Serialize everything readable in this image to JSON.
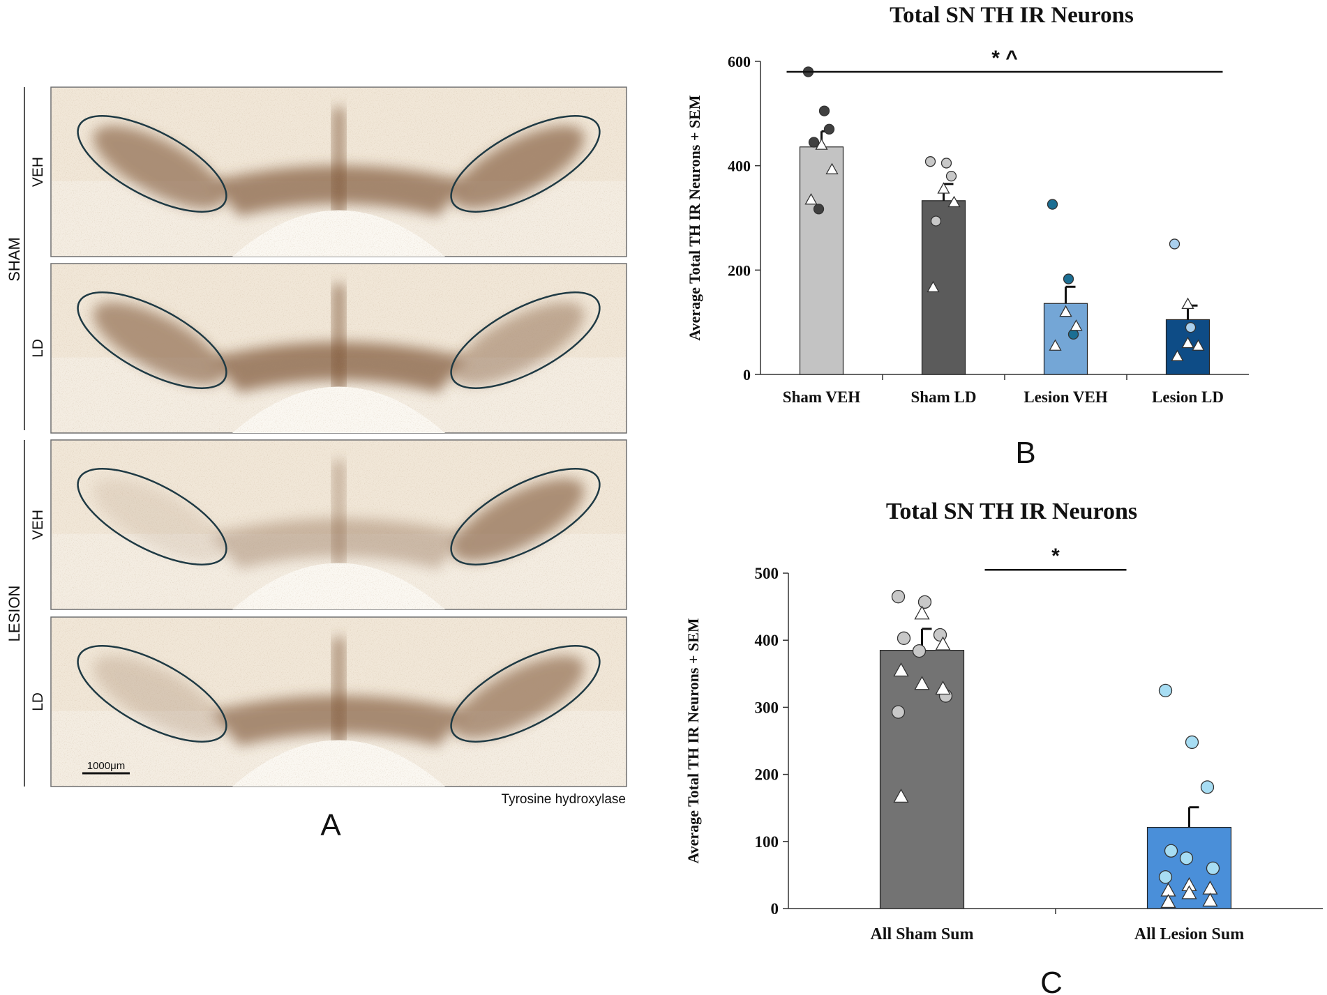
{
  "panel_a": {
    "panel_letter": "A",
    "group_labels": [
      "SHAM",
      "LESION"
    ],
    "row_labels": [
      "VEH",
      "LD",
      "VEH",
      "LD"
    ],
    "scale_bar_label": "1000μm",
    "stain_label": "Tyrosine hydroxylase",
    "rows": [
      {
        "group": "SHAM",
        "treatment": "VEH",
        "left_stain": 0.85,
        "right_stain": 0.9,
        "mid_stain": 0.9
      },
      {
        "group": "SHAM",
        "treatment": "LD",
        "left_stain": 0.8,
        "right_stain": 0.55,
        "mid_stain": 0.95
      },
      {
        "group": "LESION",
        "treatment": "VEH",
        "left_stain": 0.05,
        "right_stain": 0.85,
        "mid_stain": 0.35
      },
      {
        "group": "LESION",
        "treatment": "LD",
        "left_stain": 0.2,
        "right_stain": 0.8,
        "mid_stain": 0.85
      }
    ],
    "colors": {
      "tissue": "#f4ede2",
      "stain": "#7a5130",
      "outline": "#1f3a44"
    }
  },
  "chart_data": [
    {
      "type": "bar",
      "panel_letter": "B",
      "title": "Total SN TH IR Neurons",
      "xlabel": "",
      "ylabel": "Average Total TH IR Neurons + SEM",
      "ylim": [
        0,
        600
      ],
      "yticks": [
        0,
        200,
        400,
        600
      ],
      "categories": [
        "Sham VEH",
        "Sham LD",
        "Lesion VEH",
        "Lesion LD"
      ],
      "values": [
        436,
        333,
        136,
        105
      ],
      "errors": [
        30,
        32,
        32,
        27
      ],
      "colors": [
        "#c3c3c3",
        "#5b5b5b",
        "#74a6d6",
        "#0e4c86"
      ],
      "point_colors": [
        "#404040",
        "#c8c8c8",
        "#1b6e93",
        "#aad0ee"
      ],
      "circles": [
        [
          580,
          505,
          470,
          445,
          317
        ],
        [
          408,
          405,
          380,
          294
        ],
        [
          326,
          183,
          77
        ],
        [
          250,
          90
        ]
      ],
      "triangles": [
        [
          440,
          393,
          335
        ],
        [
          356,
          330,
          167
        ],
        [
          120,
          93,
          55,
          120
        ],
        [
          135,
          55,
          35,
          60
        ]
      ],
      "significance": {
        "label": "* ^",
        "from_category": 0,
        "to_category": 3,
        "y_value": 580
      }
    },
    {
      "type": "bar",
      "panel_letter": "C",
      "title": "Total SN TH IR Neurons",
      "xlabel": "",
      "ylabel": "Average Total TH IR Neurons + SEM",
      "ylim": [
        0,
        500
      ],
      "yticks": [
        0,
        100,
        200,
        300,
        400,
        500
      ],
      "categories": [
        "All Sham Sum",
        "All Lesion Sum"
      ],
      "values": [
        385,
        121
      ],
      "errors": [
        32,
        30
      ],
      "colors": [
        "#737373",
        "#4a8fd9"
      ],
      "point_colors": [
        "#c8c8c8",
        "#a7ddf3"
      ],
      "circles": [
        [
          465,
          457,
          408,
          403,
          384,
          317,
          293
        ],
        [
          325,
          248,
          181,
          86,
          75,
          60,
          47
        ]
      ],
      "triangles": [
        [
          440,
          394,
          355,
          335,
          328,
          167
        ],
        [
          35,
          30,
          27,
          23,
          12,
          10
        ]
      ],
      "significance": {
        "label": "*",
        "from_category": 0,
        "to_category": 1,
        "y_value": 505
      }
    }
  ]
}
